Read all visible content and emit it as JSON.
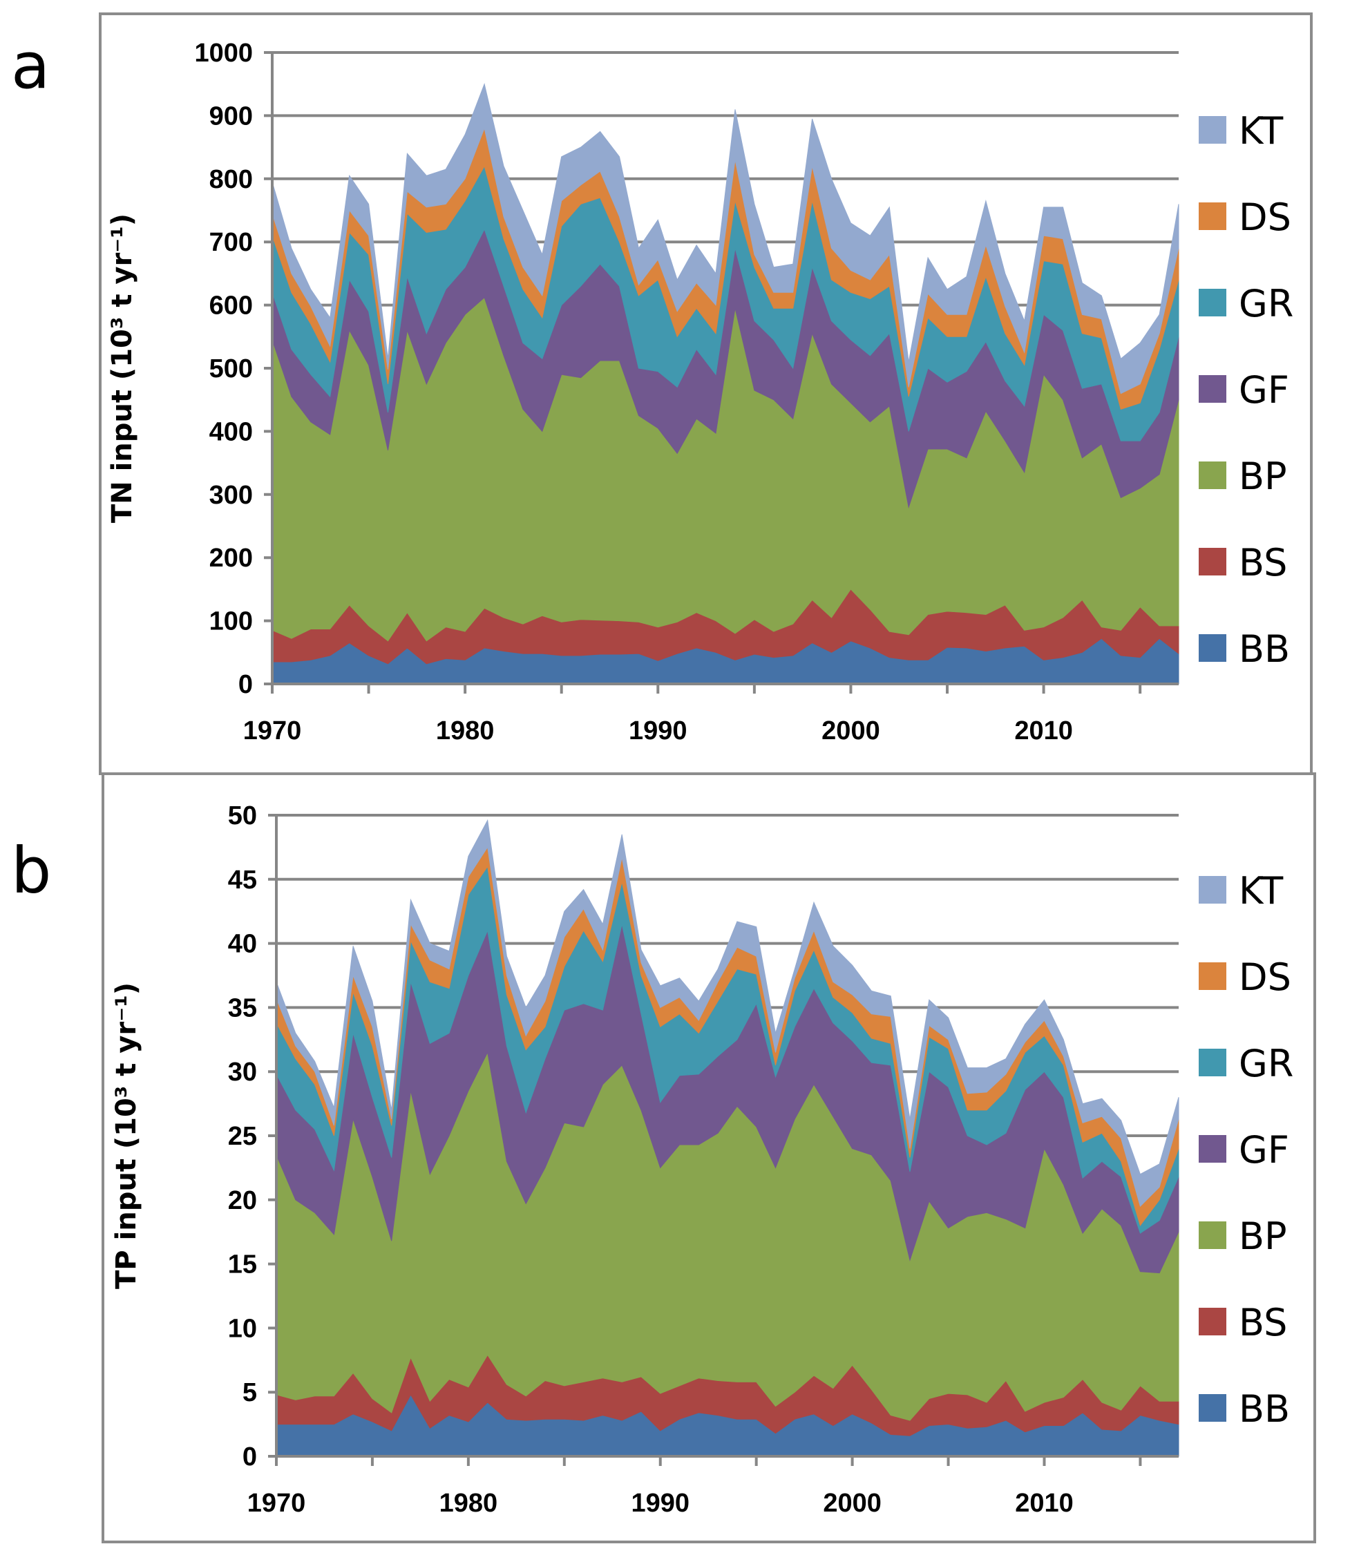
{
  "panels": [
    {
      "label": "a"
    },
    {
      "label": "b"
    }
  ],
  "chart_data": [
    {
      "type": "area",
      "stacked": true,
      "panel": "a",
      "title": "",
      "xlabel": "",
      "ylabel": "TN input",
      "ylabel_units": "(10³ t yr⁻¹)",
      "ylim": [
        0,
        1000
      ],
      "yticks": [
        0,
        100,
        200,
        300,
        400,
        500,
        600,
        700,
        800,
        900,
        1000
      ],
      "xlim": [
        1970,
        2017
      ],
      "xtick_labels": [
        "1970",
        "1980",
        "1990",
        "2000",
        "2010"
      ],
      "grid": true,
      "legend_position": "right",
      "x": [
        1970,
        1971,
        1972,
        1973,
        1974,
        1975,
        1976,
        1977,
        1978,
        1979,
        1980,
        1981,
        1982,
        1983,
        1984,
        1985,
        1986,
        1987,
        1988,
        1989,
        1990,
        1991,
        1992,
        1993,
        1994,
        1995,
        1996,
        1997,
        1998,
        1999,
        2000,
        2001,
        2002,
        2003,
        2004,
        2005,
        2006,
        2007,
        2008,
        2009,
        2010,
        2011,
        2012,
        2013,
        2014,
        2015,
        2016,
        2017
      ],
      "series": [
        {
          "name": "BB",
          "color": "#4572a7",
          "values": [
            35,
            35,
            38,
            45,
            65,
            45,
            32,
            57,
            32,
            40,
            38,
            57,
            52,
            48,
            48,
            45,
            45,
            47,
            47,
            48,
            37,
            48,
            57,
            50,
            38,
            47,
            42,
            45,
            65,
            50,
            68,
            57,
            42,
            38,
            38,
            58,
            57,
            52,
            57,
            60,
            38,
            42,
            50,
            72,
            45,
            42,
            72,
            48
          ]
        },
        {
          "name": "BS",
          "color": "#aa4643",
          "values": [
            50,
            37,
            49,
            42,
            60,
            47,
            36,
            56,
            36,
            50,
            45,
            63,
            53,
            47,
            60,
            53,
            57,
            54,
            53,
            50,
            53,
            50,
            56,
            50,
            42,
            55,
            41,
            50,
            68,
            55,
            82,
            61,
            41,
            40,
            72,
            57,
            56,
            58,
            68,
            25,
            52,
            63,
            83,
            18,
            40,
            80,
            20,
            44
          ]
        },
        {
          "name": "BP",
          "color": "#89a54e",
          "values": [
            460,
            383,
            328,
            308,
            435,
            413,
            302,
            447,
            407,
            450,
            502,
            492,
            415,
            340,
            292,
            392,
            383,
            411,
            412,
            327,
            315,
            267,
            307,
            297,
            515,
            363,
            367,
            325,
            422,
            370,
            295,
            297,
            357,
            202,
            262,
            257,
            245,
            322,
            260,
            250,
            400,
            345,
            225,
            290,
            210,
            188,
            240,
            358
          ]
        },
        {
          "name": "GF",
          "color": "#71588f",
          "values": [
            75,
            75,
            75,
            60,
            80,
            85,
            60,
            85,
            80,
            85,
            75,
            108,
            110,
            105,
            115,
            110,
            145,
            153,
            118,
            75,
            90,
            105,
            110,
            93,
            95,
            110,
            95,
            80,
            105,
            100,
            100,
            105,
            115,
            120,
            128,
            106,
            137,
            110,
            95,
            105,
            95,
            110,
            110,
            95,
            90,
            75,
            98,
            100
          ]
        },
        {
          "name": "GR",
          "color": "#4198af",
          "values": [
            90,
            90,
            80,
            55,
            75,
            90,
            45,
            100,
            160,
            95,
            105,
            100,
            75,
            85,
            65,
            125,
            130,
            105,
            70,
            115,
            145,
            80,
            65,
            65,
            75,
            85,
            50,
            95,
            105,
            65,
            75,
            90,
            75,
            55,
            80,
            72,
            55,
            103,
            75,
            65,
            85,
            105,
            87,
            73,
            50,
            60,
            100,
            90
          ]
        },
        {
          "name": "DS",
          "color": "#db843d",
          "values": [
            35,
            30,
            28,
            25,
            35,
            30,
            23,
            35,
            40,
            40,
            35,
            60,
            35,
            35,
            35,
            40,
            30,
            42,
            40,
            17,
            32,
            40,
            40,
            45,
            65,
            20,
            25,
            25,
            55,
            50,
            35,
            30,
            50,
            15,
            38,
            35,
            35,
            50,
            43,
            20,
            40,
            40,
            30,
            30,
            25,
            30,
            25,
            50
          ]
        },
        {
          "name": "KT",
          "color": "#93a9cf",
          "values": [
            50,
            40,
            27,
            45,
            55,
            50,
            17,
            60,
            50,
            55,
            70,
            70,
            80,
            90,
            65,
            70,
            60,
            63,
            95,
            58,
            63,
            50,
            60,
            50,
            80,
            80,
            40,
            45,
            75,
            110,
            75,
            70,
            75,
            40,
            57,
            40,
            60,
            70,
            52,
            50,
            45,
            50,
            50,
            37,
            55,
            65,
            30,
            70
          ]
        }
      ]
    },
    {
      "type": "area",
      "stacked": true,
      "panel": "b",
      "title": "",
      "xlabel": "",
      "ylabel": "TP input",
      "ylabel_units": "(10³ t yr⁻¹)",
      "ylim": [
        0,
        50
      ],
      "yticks": [
        0,
        5,
        10,
        15,
        20,
        25,
        30,
        35,
        40,
        45,
        50
      ],
      "xlim": [
        1970,
        2017
      ],
      "xtick_labels": [
        "1970",
        "1980",
        "1990",
        "2000",
        "2010"
      ],
      "grid": true,
      "legend_position": "right",
      "x": [
        1970,
        1971,
        1972,
        1973,
        1974,
        1975,
        1976,
        1977,
        1978,
        1979,
        1980,
        1981,
        1982,
        1983,
        1984,
        1985,
        1986,
        1987,
        1988,
        1989,
        1990,
        1991,
        1992,
        1993,
        1994,
        1995,
        1996,
        1997,
        1998,
        1999,
        2000,
        2001,
        2002,
        2003,
        2004,
        2005,
        2006,
        2007,
        2008,
        2009,
        2010,
        2011,
        2012,
        2013,
        2014,
        2015,
        2016,
        2017
      ],
      "series": [
        {
          "name": "BB",
          "color": "#4572a7",
          "values": [
            2.5,
            2.5,
            2.5,
            2.5,
            3.3,
            2.7,
            2.0,
            4.8,
            2.2,
            3.2,
            2.7,
            4.2,
            2.9,
            2.8,
            2.9,
            2.9,
            2.8,
            3.2,
            2.8,
            3.5,
            2.0,
            2.9,
            3.4,
            3.2,
            2.9,
            2.9,
            1.8,
            2.9,
            3.3,
            2.4,
            3.3,
            2.6,
            1.7,
            1.6,
            2.4,
            2.5,
            2.2,
            2.3,
            2.8,
            1.9,
            2.4,
            2.4,
            3.4,
            2.1,
            2.0,
            3.2,
            2.8,
            2.5
          ]
        },
        {
          "name": "BS",
          "color": "#aa4643",
          "values": [
            2.3,
            1.9,
            2.2,
            2.2,
            3.2,
            1.8,
            1.4,
            2.9,
            2.1,
            2.8,
            2.7,
            3.7,
            2.7,
            1.9,
            3.0,
            2.6,
            3.0,
            2.9,
            3.0,
            2.7,
            2.9,
            2.6,
            2.7,
            2.7,
            2.9,
            2.9,
            2.1,
            2.1,
            3.0,
            2.9,
            3.8,
            2.6,
            1.5,
            1.2,
            2.1,
            2.4,
            2.6,
            1.9,
            3.1,
            1.6,
            1.8,
            2.2,
            2.6,
            2.1,
            1.6,
            2.3,
            1.5,
            1.8
          ]
        },
        {
          "name": "BP",
          "color": "#89a54e",
          "values": [
            18.7,
            15.6,
            14.3,
            12.6,
            19.8,
            17.3,
            13.4,
            20.8,
            17.7,
            19.0,
            23.1,
            23.6,
            17.4,
            15.0,
            16.6,
            20.5,
            19.9,
            22.9,
            24.7,
            20.8,
            17.6,
            18.8,
            18.2,
            19.3,
            21.5,
            19.9,
            18.6,
            21.3,
            22.7,
            21.2,
            16.9,
            18.3,
            18.3,
            12.5,
            15.4,
            12.9,
            13.9,
            14.8,
            12.6,
            14.3,
            19.8,
            16.6,
            11.4,
            15.1,
            14.4,
            8.9,
            10.0,
            13.2
          ]
        },
        {
          "name": "GF",
          "color": "#71588f",
          "values": [
            6.3,
            7.0,
            6.5,
            5.0,
            6.7,
            6.2,
            6.5,
            8.5,
            10.2,
            8.0,
            9.0,
            9.5,
            9.0,
            7.1,
            8.5,
            8.8,
            9.6,
            5.8,
            11.0,
            7.5,
            5.1,
            5.4,
            5.5,
            6.0,
            5.2,
            9.6,
            7.1,
            7.2,
            7.5,
            7.3,
            8.4,
            7.2,
            9.0,
            6.9,
            10.1,
            11.0,
            6.3,
            5.3,
            6.7,
            10.8,
            6.0,
            6.8,
            4.3,
            3.7,
            3.8,
            3.0,
            4.1,
            4.3
          ]
        },
        {
          "name": "GR",
          "color": "#4198af",
          "values": [
            4.0,
            4.0,
            3.5,
            2.7,
            3.2,
            4.0,
            2.5,
            3.2,
            4.8,
            3.5,
            6.3,
            5.0,
            4.0,
            4.9,
            2.5,
            3.4,
            5.7,
            3.8,
            3.3,
            3.0,
            5.9,
            4.8,
            3.2,
            4.3,
            5.5,
            2.3,
            0.9,
            2.8,
            3.0,
            2.0,
            2.2,
            1.9,
            1.7,
            1.1,
            2.7,
            3.0,
            2.0,
            2.7,
            3.3,
            2.9,
            2.8,
            2.5,
            2.8,
            2.2,
            1.2,
            0.6,
            1.6,
            2.2
          ]
        },
        {
          "name": "DS",
          "color": "#db843d",
          "values": [
            1.9,
            1.0,
            1.0,
            0.8,
            1.3,
            1.5,
            0.5,
            1.3,
            1.7,
            1.5,
            1.4,
            1.5,
            1.5,
            1.1,
            2.0,
            2.3,
            1.7,
            0.9,
            1.9,
            1.0,
            1.5,
            1.3,
            1.0,
            1.5,
            1.7,
            1.4,
            1.0,
            1.0,
            1.5,
            1.2,
            1.4,
            1.9,
            2.1,
            0.7,
            0.9,
            0.7,
            1.3,
            1.4,
            1.3,
            0.8,
            1.2,
            0.7,
            1.5,
            1.3,
            1.8,
            1.5,
            1.0,
            2.3
          ]
        },
        {
          "name": "KT",
          "color": "#93a9cf",
          "values": [
            1.3,
            1.0,
            0.8,
            1.4,
            2.3,
            2.0,
            0.7,
            1.9,
            1.3,
            1.4,
            1.6,
            2.1,
            1.5,
            2.2,
            2.0,
            2.0,
            1.5,
            2.0,
            1.8,
            1.0,
            1.7,
            1.5,
            1.5,
            1.0,
            2.0,
            2.3,
            1.5,
            0.7,
            2.2,
            2.8,
            2.3,
            1.8,
            1.6,
            2.3,
            2.0,
            1.7,
            2.0,
            1.9,
            1.2,
            1.4,
            1.6,
            1.3,
            1.5,
            1.4,
            1.4,
            2.5,
            1.8,
            1.7
          ]
        }
      ]
    }
  ]
}
